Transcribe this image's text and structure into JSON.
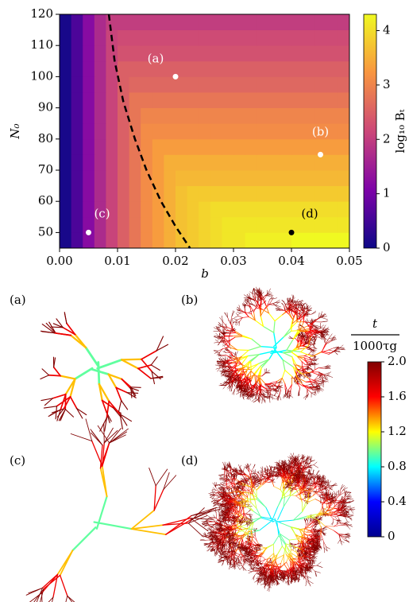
{
  "chart_data": {
    "type": "heatmap",
    "x_label": "b",
    "y_label": "N₀",
    "x_edges": [
      0,
      0.002,
      0.004,
      0.006,
      0.008,
      0.01,
      0.012,
      0.014,
      0.016,
      0.018,
      0.02,
      0.022,
      0.024,
      0.026,
      0.028,
      0.03,
      0.032,
      0.034,
      0.036,
      0.038,
      0.04,
      0.042,
      0.044,
      0.046,
      0.048,
      0.05
    ],
    "y_edges": [
      45,
      50,
      55,
      60,
      65,
      70,
      75,
      80,
      85,
      90,
      95,
      100,
      105,
      110,
      115,
      120
    ],
    "z": [
      [
        0.1,
        0.6,
        1.2,
        1.7,
        2.1,
        2.5,
        2.8,
        3.1,
        3.3,
        3.5,
        3.7,
        3.8,
        3.9,
        4.0,
        4.1,
        4.1,
        4.2,
        4.2,
        4.2,
        4.2,
        4.3,
        4.3,
        4.3,
        4.3,
        4.3
      ],
      [
        0.1,
        0.6,
        1.2,
        1.7,
        2.1,
        2.5,
        2.8,
        3.1,
        3.3,
        3.5,
        3.7,
        3.8,
        3.9,
        4.0,
        4.1,
        4.1,
        4.1,
        4.1,
        4.1,
        4.1,
        4.1,
        4.1,
        4.1,
        4.1,
        4.1
      ],
      [
        0.1,
        0.6,
        1.2,
        1.7,
        2.1,
        2.5,
        2.8,
        3.1,
        3.3,
        3.5,
        3.7,
        3.8,
        3.9,
        4.0,
        4.0,
        4.0,
        4.0,
        4.0,
        4.0,
        4.0,
        4.0,
        4.0,
        4.0,
        4.0,
        4.0
      ],
      [
        0.1,
        0.6,
        1.2,
        1.7,
        2.1,
        2.5,
        2.8,
        3.1,
        3.3,
        3.5,
        3.7,
        3.8,
        3.8,
        3.8,
        3.8,
        3.8,
        3.8,
        3.8,
        3.8,
        3.8,
        3.8,
        3.8,
        3.8,
        3.8,
        3.8
      ],
      [
        0.1,
        0.6,
        1.2,
        1.7,
        2.1,
        2.5,
        2.8,
        3.1,
        3.3,
        3.5,
        3.6,
        3.6,
        3.6,
        3.6,
        3.6,
        3.6,
        3.6,
        3.6,
        3.6,
        3.6,
        3.6,
        3.6,
        3.6,
        3.6,
        3.6
      ],
      [
        0.1,
        0.6,
        1.2,
        1.7,
        2.1,
        2.5,
        2.8,
        3.1,
        3.3,
        3.5,
        3.5,
        3.5,
        3.5,
        3.5,
        3.5,
        3.5,
        3.5,
        3.5,
        3.5,
        3.5,
        3.5,
        3.5,
        3.5,
        3.5,
        3.5
      ],
      [
        0.1,
        0.6,
        1.2,
        1.7,
        2.1,
        2.5,
        2.8,
        3.1,
        3.3,
        3.3,
        3.3,
        3.3,
        3.3,
        3.3,
        3.3,
        3.3,
        3.3,
        3.3,
        3.3,
        3.3,
        3.3,
        3.3,
        3.3,
        3.3,
        3.3
      ],
      [
        0.1,
        0.6,
        1.2,
        1.7,
        2.1,
        2.5,
        2.8,
        3.1,
        3.1,
        3.1,
        3.1,
        3.1,
        3.1,
        3.1,
        3.1,
        3.1,
        3.1,
        3.1,
        3.1,
        3.1,
        3.1,
        3.1,
        3.1,
        3.1,
        3.1
      ],
      [
        0.1,
        0.6,
        1.2,
        1.7,
        2.1,
        2.5,
        2.8,
        3.0,
        3.0,
        3.0,
        3.0,
        3.0,
        3.0,
        3.0,
        3.0,
        3.0,
        3.0,
        3.0,
        3.0,
        3.0,
        3.0,
        3.0,
        3.0,
        3.0,
        3.0
      ],
      [
        0.1,
        0.6,
        1.2,
        1.7,
        2.1,
        2.5,
        2.8,
        2.8,
        2.8,
        2.8,
        2.8,
        2.8,
        2.8,
        2.8,
        2.8,
        2.8,
        2.8,
        2.8,
        2.8,
        2.8,
        2.8,
        2.8,
        2.8,
        2.8,
        2.8
      ],
      [
        0.1,
        0.6,
        1.2,
        1.7,
        2.1,
        2.5,
        2.6,
        2.6,
        2.6,
        2.6,
        2.6,
        2.6,
        2.6,
        2.6,
        2.6,
        2.6,
        2.6,
        2.6,
        2.6,
        2.6,
        2.6,
        2.6,
        2.6,
        2.6,
        2.6
      ],
      [
        0.1,
        0.6,
        1.2,
        1.7,
        2.1,
        2.5,
        2.5,
        2.5,
        2.5,
        2.5,
        2.5,
        2.5,
        2.5,
        2.5,
        2.5,
        2.5,
        2.5,
        2.5,
        2.5,
        2.5,
        2.5,
        2.5,
        2.5,
        2.5,
        2.5
      ],
      [
        0.1,
        0.6,
        1.2,
        1.7,
        2.1,
        2.3,
        2.3,
        2.3,
        2.3,
        2.3,
        2.3,
        2.3,
        2.3,
        2.3,
        2.3,
        2.3,
        2.3,
        2.3,
        2.3,
        2.3,
        2.3,
        2.3,
        2.3,
        2.3,
        2.3
      ],
      [
        0.1,
        0.6,
        1.2,
        1.7,
        2.1,
        2.2,
        2.2,
        2.2,
        2.2,
        2.2,
        2.2,
        2.2,
        2.2,
        2.2,
        2.2,
        2.2,
        2.2,
        2.2,
        2.2,
        2.2,
        2.2,
        2.2,
        2.2,
        2.2,
        2.2
      ],
      [
        0.1,
        0.6,
        1.2,
        1.7,
        2.0,
        2.0,
        2.0,
        2.0,
        2.0,
        2.0,
        2.0,
        2.0,
        2.0,
        2.0,
        2.0,
        2.0,
        2.0,
        2.0,
        2.0,
        2.0,
        2.0,
        2.0,
        2.0,
        2.0,
        2.0
      ]
    ],
    "xlim": [
      0,
      0.05
    ],
    "ylim": [
      45,
      120
    ],
    "xticks": [
      {
        "value": 0,
        "label": "0.00"
      },
      {
        "value": 0.01,
        "label": "0.01"
      },
      {
        "value": 0.02,
        "label": "0.02"
      },
      {
        "value": 0.03,
        "label": "0.03"
      },
      {
        "value": 0.04,
        "label": "0.04"
      },
      {
        "value": 0.05,
        "label": "0.05"
      }
    ],
    "yticks": [
      50,
      60,
      70,
      80,
      90,
      100,
      110,
      120
    ],
    "colormap": [
      "#0d0887",
      "#7e03a8",
      "#cc4778",
      "#f89540",
      "#f0f921"
    ],
    "colorbar": {
      "label": "log₁₀ Bₜ",
      "lim": [
        0,
        4.3
      ],
      "ticks": [
        0,
        1,
        2,
        3,
        4
      ]
    },
    "points": [
      {
        "name": "(a)",
        "x": 0.02,
        "y": 100,
        "color": "#ffffff"
      },
      {
        "name": "(b)",
        "x": 0.045,
        "y": 75,
        "color": "#ffffff"
      },
      {
        "name": "(c)",
        "x": 0.005,
        "y": 50,
        "color": "#ffffff"
      },
      {
        "name": "(d)",
        "x": 0.04,
        "y": 50,
        "color": "#000000"
      }
    ],
    "boundary": {
      "x": [
        0.0085,
        0.0095,
        0.011,
        0.013,
        0.015,
        0.0175,
        0.02,
        0.0225
      ],
      "y": [
        120,
        105,
        92,
        80,
        70,
        60,
        52,
        45
      ],
      "color": "#000000",
      "style": "dashed"
    }
  },
  "panels": [
    {
      "label": "(a)"
    },
    {
      "label": "(b)"
    },
    {
      "label": "(c)"
    },
    {
      "label": "(d)"
    }
  ],
  "time_colorbar": {
    "numerator": "t",
    "denominator": "1000τg",
    "lim": [
      0,
      2
    ],
    "ticks": [
      0,
      0.4,
      0.8,
      1.2,
      1.6,
      {
        "value": 2,
        "label": "2.0"
      }
    ],
    "colormap": [
      "#00008f",
      "#0000ff",
      "#00ffff",
      "#ffff00",
      "#ff0000",
      "#800000"
    ]
  }
}
